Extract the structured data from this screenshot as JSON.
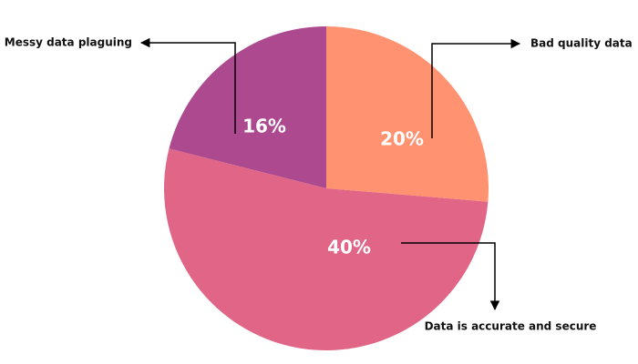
{
  "chart_data": {
    "type": "pie",
    "categories": [
      "Bad quality data",
      "Data is accurate and secure",
      "Messy data plaguing"
    ],
    "values": [
      20,
      40,
      16
    ],
    "value_labels": [
      "20%",
      "40%",
      "16%"
    ],
    "colors": [
      "#ff9270",
      "#e06586",
      "#ad4a8f"
    ]
  }
}
